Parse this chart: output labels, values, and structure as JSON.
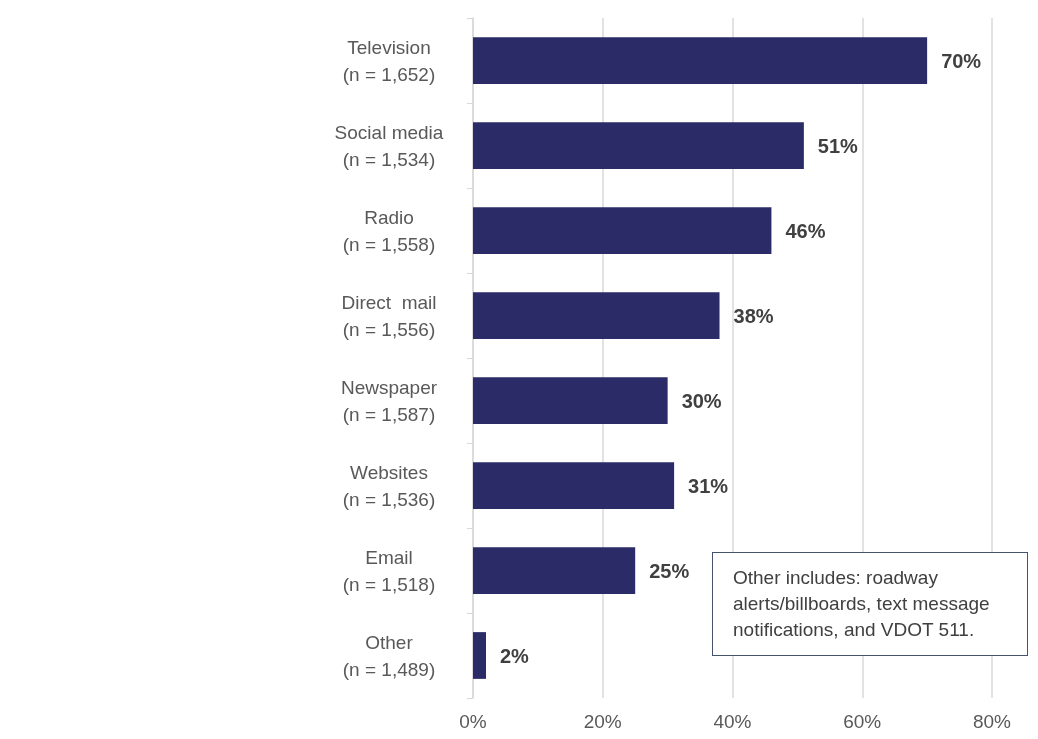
{
  "chart_data": {
    "type": "bar",
    "orientation": "horizontal",
    "categories": [
      "Television\n(n = 1,652)",
      "Social media\n(n = 1,534)",
      "Radio\n(n = 1,558)",
      "Direct  mail\n(n = 1,556)",
      "Newspaper\n(n = 1,587)",
      "Websites\n(n = 1,536)",
      "Email\n(n = 1,518)",
      "Other\n(n = 1,489)"
    ],
    "values": [
      70,
      51,
      46,
      38,
      30,
      31,
      25,
      2
    ],
    "color": "#2b2b67",
    "value_labels": [
      "70%",
      "51%",
      "46%",
      "38%",
      "30%",
      "31%",
      "25%",
      "2%"
    ],
    "xlim": [
      0,
      80
    ],
    "xticks": [
      {
        "value": 0,
        "label": "0%"
      },
      {
        "value": 20,
        "label": "20%"
      },
      {
        "value": 40,
        "label": "40%"
      },
      {
        "value": 60,
        "label": "60%"
      },
      {
        "value": 80,
        "label": "80%"
      }
    ],
    "grid": "x",
    "annotations": [
      "Other includes: roadway alerts/billboards, text message notifications, and VDOT 511."
    ]
  }
}
